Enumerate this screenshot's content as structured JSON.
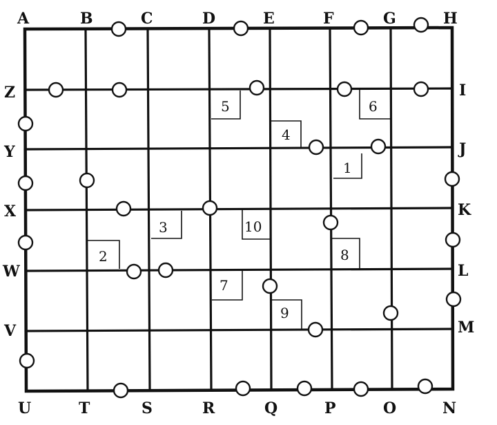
{
  "diagram": {
    "top_labels": [
      "A",
      "B",
      "C",
      "D",
      "E",
      "F",
      "G",
      "H"
    ],
    "right_labels": [
      "I",
      "J",
      "K",
      "L",
      "M"
    ],
    "bottom_labels": [
      "U",
      "T",
      "S",
      "R",
      "Q",
      "P",
      "O",
      "N"
    ],
    "left_labels": [
      "Z",
      "Y",
      "X",
      "W",
      "V"
    ],
    "room_numbers": [
      "1",
      "2",
      "3",
      "4",
      "5",
      "6",
      "7",
      "8",
      "9",
      "10"
    ],
    "stroke_color": "#111111",
    "background_color": "#ffffff"
  }
}
